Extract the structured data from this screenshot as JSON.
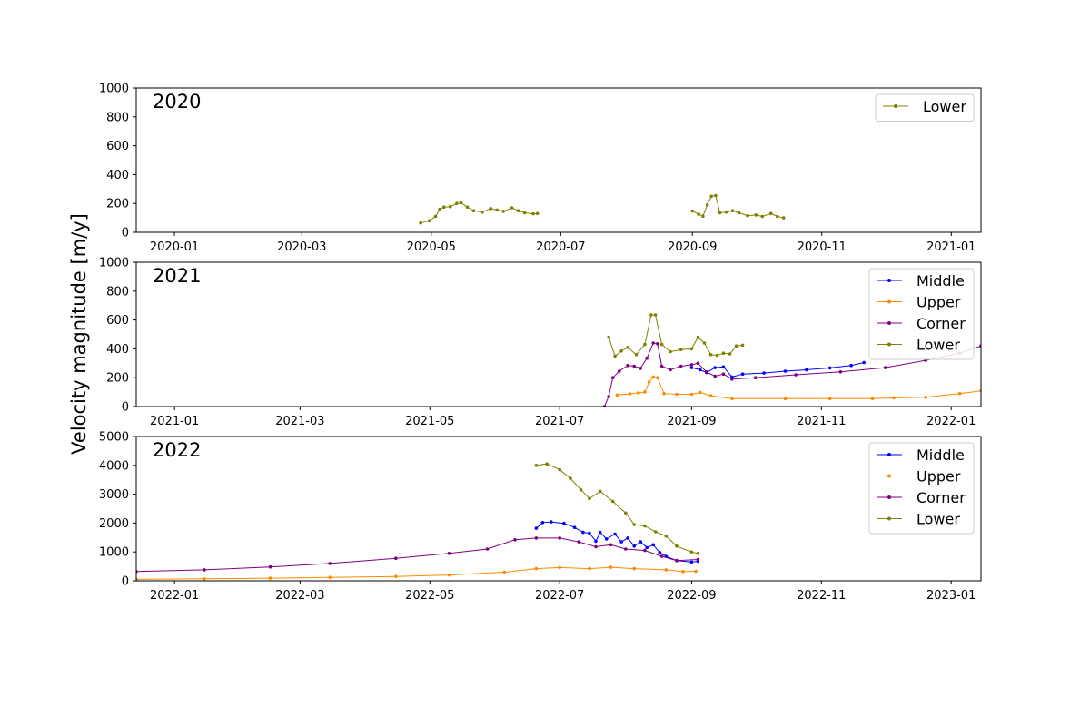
{
  "figure": {
    "ylabel": "Velocity magnitude  [m/y]"
  },
  "chart_data": [
    {
      "type": "line",
      "panel_label": "2020",
      "xlim": [
        "2019-12-14",
        "2021-01-15"
      ],
      "ylim": [
        0,
        1000
      ],
      "yticks": [
        0,
        200,
        400,
        600,
        800,
        1000
      ],
      "xticks": [
        "2020-01",
        "2020-03",
        "2020-05",
        "2020-07",
        "2020-09",
        "2020-11",
        "2021-01"
      ],
      "legend_position": "upper right",
      "series": [
        {
          "name": "Lower",
          "color": "#808000",
          "segments": [
            [
              [
                "2020-04-26",
                65
              ],
              [
                "2020-04-30",
                80
              ],
              [
                "2020-05-03",
                110
              ],
              [
                "2020-05-05",
                160
              ],
              [
                "2020-05-07",
                175
              ],
              [
                "2020-05-10",
                178
              ],
              [
                "2020-05-13",
                200
              ],
              [
                "2020-05-15",
                205
              ],
              [
                "2020-05-18",
                175
              ],
              [
                "2020-05-21",
                150
              ],
              [
                "2020-05-25",
                140
              ],
              [
                "2020-05-29",
                165
              ],
              [
                "2020-06-01",
                155
              ],
              [
                "2020-06-04",
                145
              ],
              [
                "2020-06-08",
                170
              ],
              [
                "2020-06-11",
                150
              ],
              [
                "2020-06-14",
                135
              ],
              [
                "2020-06-18",
                128
              ],
              [
                "2020-06-20",
                130
              ]
            ],
            [
              [
                "2020-09-01",
                148
              ],
              [
                "2020-09-04",
                125
              ],
              [
                "2020-09-06",
                112
              ],
              [
                "2020-09-08",
                190
              ],
              [
                "2020-09-10",
                250
              ],
              [
                "2020-09-12",
                255
              ],
              [
                "2020-09-14",
                135
              ],
              [
                "2020-09-17",
                140
              ],
              [
                "2020-09-20",
                150
              ],
              [
                "2020-09-23",
                135
              ],
              [
                "2020-09-27",
                115
              ],
              [
                "2020-10-01",
                120
              ],
              [
                "2020-10-04",
                110
              ],
              [
                "2020-10-08",
                130
              ],
              [
                "2020-10-11",
                110
              ],
              [
                "2020-10-14",
                100
              ]
            ]
          ]
        }
      ]
    },
    {
      "type": "line",
      "panel_label": "2021",
      "xlim": [
        "2020-12-14",
        "2022-01-15"
      ],
      "ylim": [
        0,
        1000
      ],
      "yticks": [
        0,
        200,
        400,
        600,
        800,
        1000
      ],
      "xticks": [
        "2021-01",
        "2021-03",
        "2021-05",
        "2021-07",
        "2021-09",
        "2021-11",
        "2022-01"
      ],
      "legend_position": "upper right",
      "series": [
        {
          "name": "Middle",
          "color": "#0000ff",
          "segments": [
            [
              [
                "2021-09-01",
                270
              ],
              [
                "2021-09-05",
                255
              ],
              [
                "2021-09-08",
                235
              ],
              [
                "2021-09-12",
                270
              ],
              [
                "2021-09-16",
                275
              ],
              [
                "2021-09-20",
                205
              ],
              [
                "2021-09-25",
                225
              ],
              [
                "2021-10-05",
                232
              ],
              [
                "2021-10-15",
                245
              ],
              [
                "2021-10-25",
                255
              ],
              [
                "2021-11-05",
                268
              ],
              [
                "2021-11-15",
                285
              ],
              [
                "2021-11-21",
                305
              ]
            ]
          ]
        },
        {
          "name": "Upper",
          "color": "#ff8c00",
          "segments": [
            [
              [
                "2021-07-28",
                80
              ],
              [
                "2021-08-03",
                88
              ],
              [
                "2021-08-07",
                95
              ],
              [
                "2021-08-10",
                100
              ],
              [
                "2021-08-12",
                170
              ],
              [
                "2021-08-14",
                205
              ],
              [
                "2021-08-16",
                200
              ],
              [
                "2021-08-19",
                90
              ],
              [
                "2021-08-25",
                85
              ],
              [
                "2021-09-01",
                85
              ],
              [
                "2021-09-05",
                98
              ],
              [
                "2021-09-10",
                75
              ],
              [
                "2021-09-20",
                55
              ],
              [
                "2021-10-15",
                55
              ],
              [
                "2021-11-05",
                55
              ],
              [
                "2021-11-25",
                55
              ],
              [
                "2021-12-05",
                60
              ],
              [
                "2021-12-20",
                65
              ],
              [
                "2022-01-05",
                90
              ],
              [
                "2022-01-15",
                108
              ]
            ]
          ]
        },
        {
          "name": "Corner",
          "color": "#800080",
          "segments": [
            [
              [
                "2021-07-22",
                0
              ],
              [
                "2021-07-24",
                70
              ],
              [
                "2021-07-26",
                200
              ],
              [
                "2021-07-29",
                245
              ],
              [
                "2021-08-02",
                285
              ],
              [
                "2021-08-05",
                280
              ],
              [
                "2021-08-08",
                265
              ],
              [
                "2021-08-11",
                335
              ],
              [
                "2021-08-14",
                440
              ],
              [
                "2021-08-16",
                435
              ],
              [
                "2021-08-18",
                280
              ],
              [
                "2021-08-22",
                255
              ],
              [
                "2021-08-27",
                280
              ],
              [
                "2021-09-01",
                290
              ],
              [
                "2021-09-04",
                300
              ],
              [
                "2021-09-08",
                240
              ],
              [
                "2021-09-12",
                210
              ],
              [
                "2021-09-16",
                225
              ],
              [
                "2021-09-20",
                190
              ],
              [
                "2021-10-01",
                200
              ],
              [
                "2021-10-20",
                220
              ],
              [
                "2021-11-10",
                240
              ],
              [
                "2021-12-01",
                270
              ],
              [
                "2021-12-20",
                320
              ],
              [
                "2022-01-05",
                370
              ],
              [
                "2022-01-15",
                420
              ]
            ]
          ]
        },
        {
          "name": "Lower",
          "color": "#808000",
          "segments": [
            [
              [
                "2021-07-24",
                480
              ],
              [
                "2021-07-27",
                350
              ],
              [
                "2021-07-30",
                385
              ],
              [
                "2021-08-02",
                410
              ],
              [
                "2021-08-06",
                360
              ],
              [
                "2021-08-10",
                430
              ],
              [
                "2021-08-13",
                635
              ],
              [
                "2021-08-15",
                635
              ],
              [
                "2021-08-18",
                430
              ],
              [
                "2021-08-22",
                380
              ],
              [
                "2021-08-27",
                395
              ],
              [
                "2021-09-01",
                400
              ],
              [
                "2021-09-04",
                480
              ],
              [
                "2021-09-07",
                440
              ],
              [
                "2021-09-10",
                360
              ],
              [
                "2021-09-13",
                355
              ],
              [
                "2021-09-16",
                370
              ],
              [
                "2021-09-19",
                365
              ],
              [
                "2021-09-22",
                420
              ],
              [
                "2021-09-25",
                425
              ]
            ]
          ]
        }
      ]
    },
    {
      "type": "line",
      "panel_label": "2022",
      "xlim": [
        "2021-12-14",
        "2023-01-15"
      ],
      "ylim": [
        0,
        5000
      ],
      "yticks": [
        0,
        1000,
        2000,
        3000,
        4000,
        5000
      ],
      "xticks": [
        "2022-01",
        "2022-03",
        "2022-05",
        "2022-07",
        "2022-09",
        "2022-11",
        "2023-01"
      ],
      "legend_position": "upper right",
      "series": [
        {
          "name": "Middle",
          "color": "#0000ff",
          "segments": [
            [
              [
                "2022-06-20",
                1820
              ],
              [
                "2022-06-23",
                2020
              ],
              [
                "2022-06-27",
                2040
              ],
              [
                "2022-07-03",
                1990
              ],
              [
                "2022-07-08",
                1850
              ],
              [
                "2022-07-12",
                1680
              ],
              [
                "2022-07-15",
                1650
              ],
              [
                "2022-07-18",
                1370
              ],
              [
                "2022-07-20",
                1680
              ],
              [
                "2022-07-23",
                1450
              ],
              [
                "2022-07-27",
                1620
              ],
              [
                "2022-07-30",
                1350
              ],
              [
                "2022-08-02",
                1480
              ],
              [
                "2022-08-05",
                1200
              ],
              [
                "2022-08-08",
                1350
              ],
              [
                "2022-08-11",
                1150
              ],
              [
                "2022-08-14",
                1250
              ],
              [
                "2022-08-17",
                980
              ],
              [
                "2022-08-20",
                850
              ],
              [
                "2022-08-25",
                700
              ],
              [
                "2022-09-01",
                650
              ],
              [
                "2022-09-04",
                680
              ]
            ]
          ]
        },
        {
          "name": "Upper",
          "color": "#ff8c00",
          "segments": [
            [
              [
                "2021-12-14",
                50
              ],
              [
                "2022-01-15",
                70
              ],
              [
                "2022-02-15",
                90
              ],
              [
                "2022-03-15",
                120
              ],
              [
                "2022-04-15",
                150
              ],
              [
                "2022-05-10",
                200
              ],
              [
                "2022-06-05",
                300
              ],
              [
                "2022-06-20",
                420
              ],
              [
                "2022-07-01",
                460
              ],
              [
                "2022-07-15",
                420
              ],
              [
                "2022-07-25",
                470
              ],
              [
                "2022-08-05",
                420
              ],
              [
                "2022-08-20",
                380
              ],
              [
                "2022-08-28",
                320
              ],
              [
                "2022-09-03",
                330
              ]
            ]
          ]
        },
        {
          "name": "Corner",
          "color": "#800080",
          "segments": [
            [
              [
                "2021-12-14",
                320
              ],
              [
                "2022-01-15",
                380
              ],
              [
                "2022-02-15",
                480
              ],
              [
                "2022-03-15",
                600
              ],
              [
                "2022-04-15",
                780
              ],
              [
                "2022-05-10",
                950
              ],
              [
                "2022-05-28",
                1100
              ],
              [
                "2022-06-10",
                1420
              ],
              [
                "2022-06-20",
                1480
              ],
              [
                "2022-07-01",
                1480
              ],
              [
                "2022-07-10",
                1350
              ],
              [
                "2022-07-18",
                1180
              ],
              [
                "2022-07-25",
                1250
              ],
              [
                "2022-08-01",
                1100
              ],
              [
                "2022-08-10",
                1050
              ],
              [
                "2022-08-18",
                850
              ],
              [
                "2022-08-25",
                700
              ],
              [
                "2022-09-04",
                740
              ]
            ]
          ]
        },
        {
          "name": "Lower",
          "color": "#808000",
          "segments": [
            [
              [
                "2022-06-20",
                4000
              ],
              [
                "2022-06-25",
                4050
              ],
              [
                "2022-07-01",
                3850
              ],
              [
                "2022-07-06",
                3550
              ],
              [
                "2022-07-11",
                3150
              ],
              [
                "2022-07-15",
                2850
              ],
              [
                "2022-07-20",
                3100
              ],
              [
                "2022-07-26",
                2750
              ],
              [
                "2022-08-01",
                2350
              ],
              [
                "2022-08-05",
                1950
              ],
              [
                "2022-08-10",
                1900
              ],
              [
                "2022-08-15",
                1700
              ],
              [
                "2022-08-20",
                1550
              ],
              [
                "2022-08-25",
                1200
              ],
              [
                "2022-09-01",
                1000
              ],
              [
                "2022-09-04",
                950
              ]
            ]
          ]
        }
      ]
    }
  ]
}
